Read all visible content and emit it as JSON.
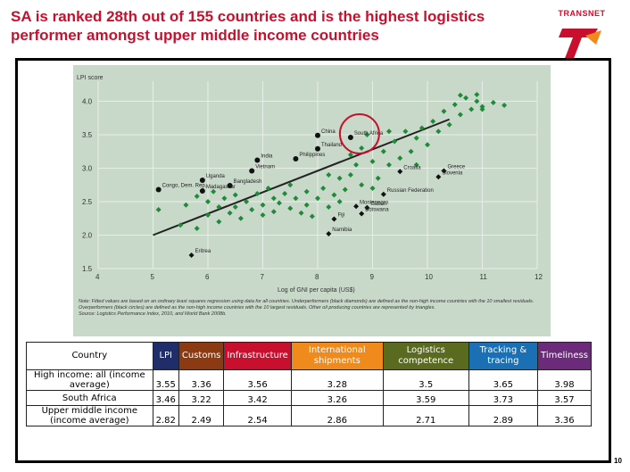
{
  "slide": {
    "title": "SA is ranked 28th out of 155 countries and is the highest logistics performer amongst upper middle income countries",
    "logo_text": "TRANSNET",
    "page_number": "10"
  },
  "chart_data": {
    "type": "scatter",
    "ylabel": "LPI score",
    "xlabel": "Log of GNI per capita (US$)",
    "xlim": [
      4,
      12
    ],
    "ylim": [
      1.5,
      4.3
    ],
    "x_ticks": [
      "4",
      "5",
      "6",
      "7",
      "8",
      "9",
      "10",
      "11",
      "12"
    ],
    "y_ticks": [
      "1.5",
      "2.0",
      "2.5",
      "3.0",
      "3.5",
      "4.0"
    ],
    "grid": true,
    "fit_line": {
      "x": [
        5.0,
        10.4
      ],
      "y": [
        2.0,
        3.73
      ]
    },
    "labeled_points": [
      {
        "label": "South Africa",
        "x": 8.6,
        "y": 3.46,
        "kind": "circle"
      },
      {
        "label": "China",
        "x": 8.0,
        "y": 3.49,
        "kind": "circle"
      },
      {
        "label": "India",
        "x": 6.9,
        "y": 3.12,
        "kind": "circle"
      },
      {
        "label": "Philippines",
        "x": 7.6,
        "y": 3.14,
        "kind": "circle"
      },
      {
        "label": "Thailand",
        "x": 8.0,
        "y": 3.29,
        "kind": "circle"
      },
      {
        "label": "Vietnam",
        "x": 6.8,
        "y": 2.96,
        "kind": "circle"
      },
      {
        "label": "Uganda",
        "x": 5.9,
        "y": 2.82,
        "kind": "circle"
      },
      {
        "label": "Bangladesh",
        "x": 6.4,
        "y": 2.74,
        "kind": "circle"
      },
      {
        "label": "Madagascar",
        "x": 5.9,
        "y": 2.66,
        "kind": "circle"
      },
      {
        "label": "Congo, Dem. Rep.",
        "x": 5.1,
        "y": 2.68,
        "kind": "circle"
      },
      {
        "label": "Eritrea",
        "x": 5.7,
        "y": 1.7,
        "kind": "diamond"
      },
      {
        "label": "Croatia",
        "x": 9.5,
        "y": 2.95,
        "kind": "diamond"
      },
      {
        "label": "Greece",
        "x": 10.3,
        "y": 2.96,
        "kind": "diamond"
      },
      {
        "label": "Slovenia",
        "x": 10.2,
        "y": 2.87,
        "kind": "diamond"
      },
      {
        "label": "Russian Federation",
        "x": 9.2,
        "y": 2.61,
        "kind": "diamond"
      },
      {
        "label": "Montenegro",
        "x": 8.7,
        "y": 2.43,
        "kind": "diamond"
      },
      {
        "label": "Gabon",
        "x": 8.9,
        "y": 2.41,
        "kind": "diamond"
      },
      {
        "label": "Fiji",
        "x": 8.3,
        "y": 2.24,
        "kind": "diamond"
      },
      {
        "label": "Botswana",
        "x": 8.8,
        "y": 2.32,
        "kind": "diamond"
      },
      {
        "label": "Namibia",
        "x": 8.2,
        "y": 2.02,
        "kind": "diamond"
      }
    ],
    "other_points": [
      [
        5.1,
        2.38
      ],
      [
        5.5,
        2.15
      ],
      [
        5.6,
        2.45
      ],
      [
        5.8,
        2.58
      ],
      [
        5.8,
        2.1
      ],
      [
        6.0,
        2.5
      ],
      [
        6.0,
        2.3
      ],
      [
        6.1,
        2.65
      ],
      [
        6.2,
        2.42
      ],
      [
        6.2,
        2.2
      ],
      [
        6.3,
        2.55
      ],
      [
        6.4,
        2.33
      ],
      [
        6.5,
        2.6
      ],
      [
        6.5,
        2.42
      ],
      [
        6.6,
        2.25
      ],
      [
        6.7,
        2.5
      ],
      [
        6.8,
        2.38
      ],
      [
        6.9,
        2.62
      ],
      [
        7.0,
        2.45
      ],
      [
        7.0,
        2.3
      ],
      [
        7.1,
        2.7
      ],
      [
        7.2,
        2.55
      ],
      [
        7.2,
        2.35
      ],
      [
        7.3,
        2.48
      ],
      [
        7.4,
        2.62
      ],
      [
        7.5,
        2.4
      ],
      [
        7.6,
        2.55
      ],
      [
        7.7,
        2.33
      ],
      [
        7.8,
        2.65
      ],
      [
        7.8,
        2.45
      ],
      [
        7.9,
        2.28
      ],
      [
        8.0,
        2.55
      ],
      [
        8.1,
        2.7
      ],
      [
        8.2,
        2.42
      ],
      [
        8.3,
        2.6
      ],
      [
        8.4,
        2.85
      ],
      [
        8.4,
        2.5
      ],
      [
        8.5,
        2.68
      ],
      [
        8.6,
        2.9
      ],
      [
        8.7,
        3.05
      ],
      [
        8.8,
        3.3
      ],
      [
        8.8,
        2.75
      ],
      [
        8.9,
        3.5
      ],
      [
        9.0,
        3.1
      ],
      [
        9.1,
        2.85
      ],
      [
        9.2,
        3.25
      ],
      [
        9.3,
        3.05
      ],
      [
        9.4,
        3.4
      ],
      [
        9.5,
        3.15
      ],
      [
        9.6,
        3.55
      ],
      [
        9.7,
        3.25
      ],
      [
        9.8,
        3.45
      ],
      [
        9.9,
        3.6
      ],
      [
        10.0,
        3.35
      ],
      [
        10.1,
        3.7
      ],
      [
        10.2,
        3.55
      ],
      [
        10.3,
        3.85
      ],
      [
        10.4,
        3.65
      ],
      [
        10.5,
        3.95
      ],
      [
        10.6,
        3.8
      ],
      [
        10.7,
        4.05
      ],
      [
        10.8,
        3.88
      ],
      [
        10.9,
        4.0
      ],
      [
        11.0,
        3.92
      ],
      [
        11.2,
        3.98
      ],
      [
        11.4,
        3.94
      ],
      [
        9.8,
        3.05
      ],
      [
        9.0,
        2.7
      ],
      [
        8.6,
        3.2
      ],
      [
        7.5,
        2.75
      ],
      [
        10.6,
        4.09
      ],
      [
        10.9,
        4.1
      ],
      [
        11.0,
        3.88
      ],
      [
        9.3,
        3.55
      ],
      [
        8.2,
        2.9
      ]
    ],
    "footnote": "Note: Fitted values are based on an ordinary least squares regression using data for all countries. Underperformers (black diamonds) are defined as the non-high income countries with the 10 smallest residuals. Overperformers (black circles) are defined as the non-high income countries with the 10 largest residuals. Other oil producing countries are represented by triangles.",
    "source": "Source: Logistics Performance Index, 2010, and World Bank 2008b."
  },
  "table": {
    "headers": [
      {
        "label": "Country",
        "color": "#ffffff"
      },
      {
        "label": "LPI",
        "color": "#1f2d6b"
      },
      {
        "label": "Customs",
        "color": "#8b3a12"
      },
      {
        "label": "Infrastructure",
        "color": "#c8102e"
      },
      {
        "label": "International shipments",
        "color": "#f08a1c"
      },
      {
        "label": "Logistics competence",
        "color": "#5a6b1f"
      },
      {
        "label": "Tracking & tracing",
        "color": "#1a6fb5"
      },
      {
        "label": "Timeliness",
        "color": "#6b2a7a"
      }
    ],
    "rows": [
      {
        "country": "High income: all (income average)",
        "values": [
          "3.55",
          "3.36",
          "3.56",
          "3.28",
          "3.5",
          "3.65",
          "3.98"
        ]
      },
      {
        "country": "South Africa",
        "values": [
          "3.46",
          "3.22",
          "3.42",
          "3.26",
          "3.59",
          "3.73",
          "3.57"
        ]
      },
      {
        "country": "Upper middle income (income average)",
        "values": [
          "2.82",
          "2.49",
          "2.54",
          "2.86",
          "2.71",
          "2.89",
          "3.36"
        ]
      }
    ]
  }
}
